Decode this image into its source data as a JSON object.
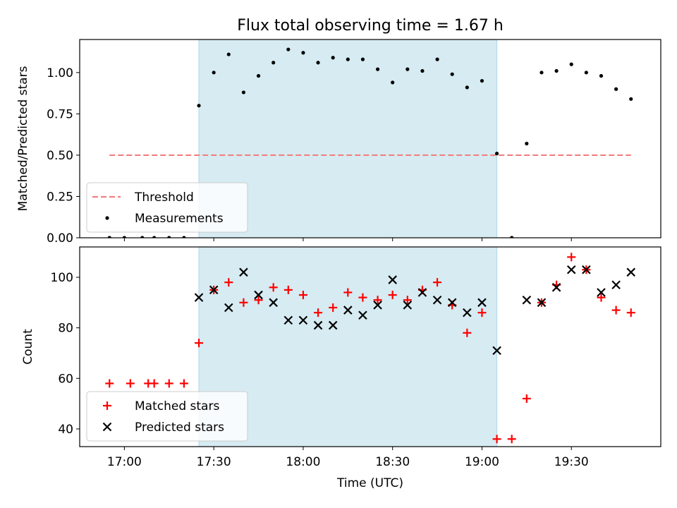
{
  "title": "Flux total observing time = 1.67 h",
  "chart_data": [
    {
      "type": "scatter",
      "ylabel": "Matched/Predicted stars",
      "ylim": [
        0,
        1.2
      ],
      "xlim": [
        "16:45",
        "20:00"
      ],
      "yticks": [
        "0.00",
        "0.25",
        "0.50",
        "0.75",
        "1.00"
      ],
      "shaded_interval": [
        "17:25",
        "19:05"
      ],
      "threshold": {
        "name": "Threshold",
        "value": 0.5,
        "from": "16:55",
        "to": "19:50",
        "color": "#f28080"
      },
      "legend": {
        "position": "lower-left",
        "entries": [
          "Threshold",
          "Measurements"
        ]
      },
      "series": [
        {
          "name": "Measurements",
          "marker": "dot",
          "color": "#000000",
          "points": [
            [
              "16:55",
              0.0
            ],
            [
              "17:00",
              0.0
            ],
            [
              "17:06",
              0.0
            ],
            [
              "17:10",
              0.0
            ],
            [
              "17:15",
              0.0
            ],
            [
              "17:20",
              0.0
            ],
            [
              "17:25",
              0.8
            ],
            [
              "17:30",
              1.0
            ],
            [
              "17:35",
              1.11
            ],
            [
              "17:40",
              0.88
            ],
            [
              "17:45",
              0.98
            ],
            [
              "17:50",
              1.06
            ],
            [
              "17:55",
              1.14
            ],
            [
              "18:00",
              1.12
            ],
            [
              "18:05",
              1.06
            ],
            [
              "18:10",
              1.09
            ],
            [
              "18:15",
              1.08
            ],
            [
              "18:20",
              1.08
            ],
            [
              "18:25",
              1.02
            ],
            [
              "18:30",
              0.94
            ],
            [
              "18:35",
              1.02
            ],
            [
              "18:40",
              1.01
            ],
            [
              "18:45",
              1.08
            ],
            [
              "18:50",
              0.99
            ],
            [
              "18:55",
              0.91
            ],
            [
              "19:00",
              0.95
            ],
            [
              "19:05",
              0.51
            ],
            [
              "19:10",
              0.0
            ],
            [
              "19:15",
              0.57
            ],
            [
              "19:20",
              1.0
            ],
            [
              "19:25",
              1.01
            ],
            [
              "19:30",
              1.05
            ],
            [
              "19:35",
              1.0
            ],
            [
              "19:40",
              0.98
            ],
            [
              "19:45",
              0.9
            ],
            [
              "19:50",
              0.84
            ]
          ]
        }
      ]
    },
    {
      "type": "scatter",
      "xlabel": "Time (UTC)",
      "ylabel": "Count",
      "ylim": [
        33,
        112
      ],
      "xlim": [
        "16:45",
        "20:00"
      ],
      "xticks": [
        "17:00",
        "17:30",
        "18:00",
        "18:30",
        "19:00",
        "19:30"
      ],
      "yticks": [
        "40",
        "60",
        "80",
        "100"
      ],
      "shaded_interval": [
        "17:25",
        "19:05"
      ],
      "legend": {
        "position": "lower-left",
        "entries": [
          "Matched stars",
          "Predicted stars"
        ]
      },
      "series": [
        {
          "name": "Matched stars",
          "marker": "plus",
          "color": "#ff0000",
          "points": [
            [
              "16:55",
              58
            ],
            [
              "17:02",
              58
            ],
            [
              "17:08",
              58
            ],
            [
              "17:10",
              58
            ],
            [
              "17:15",
              58
            ],
            [
              "17:20",
              58
            ],
            [
              "17:25",
              74
            ],
            [
              "17:30",
              95
            ],
            [
              "17:35",
              98
            ],
            [
              "17:40",
              90
            ],
            [
              "17:45",
              91
            ],
            [
              "17:50",
              96
            ],
            [
              "17:55",
              95
            ],
            [
              "18:00",
              93
            ],
            [
              "18:05",
              86
            ],
            [
              "18:10",
              88
            ],
            [
              "18:15",
              94
            ],
            [
              "18:20",
              92
            ],
            [
              "18:25",
              91
            ],
            [
              "18:30",
              93
            ],
            [
              "18:35",
              91
            ],
            [
              "18:40",
              95
            ],
            [
              "18:45",
              98
            ],
            [
              "18:50",
              89
            ],
            [
              "18:55",
              78
            ],
            [
              "19:00",
              86
            ],
            [
              "19:05",
              36
            ],
            [
              "19:10",
              36
            ],
            [
              "19:15",
              52
            ],
            [
              "19:20",
              90
            ],
            [
              "19:25",
              97
            ],
            [
              "19:30",
              108
            ],
            [
              "19:35",
              103
            ],
            [
              "19:40",
              92
            ],
            [
              "19:45",
              87
            ],
            [
              "19:50",
              86
            ]
          ]
        },
        {
          "name": "Predicted stars",
          "marker": "x",
          "color": "#000000",
          "points": [
            [
              "17:25",
              92
            ],
            [
              "17:30",
              95
            ],
            [
              "17:35",
              88
            ],
            [
              "17:40",
              102
            ],
            [
              "17:45",
              93
            ],
            [
              "17:50",
              90
            ],
            [
              "17:55",
              83
            ],
            [
              "18:00",
              83
            ],
            [
              "18:05",
              81
            ],
            [
              "18:10",
              81
            ],
            [
              "18:15",
              87
            ],
            [
              "18:20",
              85
            ],
            [
              "18:25",
              89
            ],
            [
              "18:30",
              99
            ],
            [
              "18:35",
              89
            ],
            [
              "18:40",
              94
            ],
            [
              "18:45",
              91
            ],
            [
              "18:50",
              90
            ],
            [
              "18:55",
              86
            ],
            [
              "19:00",
              90
            ],
            [
              "19:05",
              71
            ],
            [
              "19:15",
              91
            ],
            [
              "19:20",
              90
            ],
            [
              "19:25",
              96
            ],
            [
              "19:30",
              103
            ],
            [
              "19:35",
              103
            ],
            [
              "19:40",
              94
            ],
            [
              "19:45",
              97
            ],
            [
              "19:50",
              102
            ]
          ]
        }
      ]
    }
  ]
}
